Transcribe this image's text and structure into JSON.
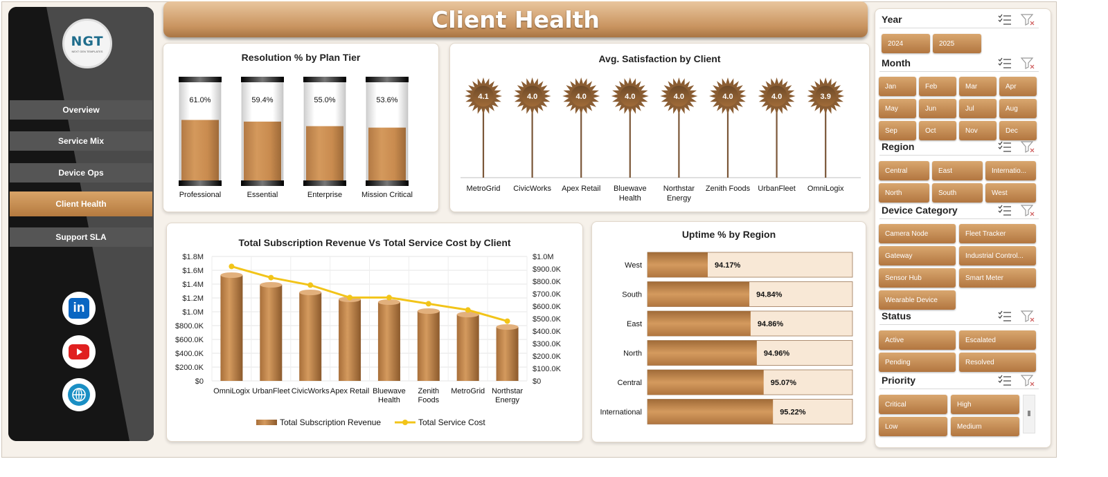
{
  "title": "Client Health",
  "logo": {
    "text": "NGT",
    "subtext": "NEXT GEN TEMPLATES"
  },
  "nav": [
    {
      "label": "Overview",
      "active": false
    },
    {
      "label": "Service Mix",
      "active": false
    },
    {
      "label": "Device Ops",
      "active": false
    },
    {
      "label": "Client Health",
      "active": true
    },
    {
      "label": "Support SLA",
      "active": false
    }
  ],
  "social": [
    {
      "icon": "linkedin-icon",
      "text": "in"
    },
    {
      "icon": "youtube-icon"
    },
    {
      "icon": "globe-icon"
    }
  ],
  "colors": {
    "accent": "#c68a4d",
    "accent_dark": "#a06b38",
    "line": "#f2c419",
    "track": "#f8e8d6"
  },
  "slicers": {
    "year": {
      "label": "Year",
      "options": [
        "2024",
        "2025"
      ]
    },
    "month": {
      "label": "Month",
      "options": [
        "Jan",
        "Feb",
        "Mar",
        "Apr",
        "May",
        "Jun",
        "Jul",
        "Aug",
        "Sep",
        "Oct",
        "Nov",
        "Dec"
      ]
    },
    "region": {
      "label": "Region",
      "options": [
        "Central",
        "East",
        "Internatio...",
        "North",
        "South",
        "West"
      ]
    },
    "device_category": {
      "label": "Device Category",
      "options": [
        "Camera Node",
        "Fleet Tracker",
        "Gateway",
        "Industrial Control...",
        "Sensor Hub",
        "Smart Meter",
        "Wearable Device"
      ]
    },
    "status": {
      "label": "Status",
      "options": [
        "Active",
        "Escalated",
        "Pending",
        "Resolved"
      ]
    },
    "priority": {
      "label": "Priority",
      "options": [
        "Critical",
        "High",
        "Low",
        "Medium"
      ]
    }
  },
  "chart_data": [
    {
      "type": "bar",
      "title": "Resolution % by Plan Tier",
      "categories": [
        "Professional",
        "Essential",
        "Enterprise",
        "Mission Critical"
      ],
      "values": [
        61.0,
        59.4,
        55.0,
        53.6
      ],
      "labels": [
        "61.0%",
        "59.4%",
        "55.0%",
        "53.6%"
      ],
      "ylim": [
        0,
        100
      ]
    },
    {
      "type": "scatter",
      "title": "Avg. Satisfaction by Client",
      "categories": [
        "MetroGrid",
        "CivicWorks",
        "Apex Retail",
        "Bluewave Health",
        "Northstar Energy",
        "Zenith Foods",
        "UrbanFleet",
        "OmniLogix"
      ],
      "values": [
        4.1,
        4.0,
        4.0,
        4.0,
        4.0,
        4.0,
        4.0,
        3.9
      ],
      "labels": [
        "4.1",
        "4.0",
        "4.0",
        "4.0",
        "4.0",
        "4.0",
        "4.0",
        "3.9"
      ]
    },
    {
      "type": "bar",
      "title": "Total Subscription Revenue  Vs Total Service Cost by Client",
      "categories": [
        "OmniLogix",
        "UrbanFleet",
        "CivicWorks",
        "Apex Retail",
        "Bluewave Health",
        "Zenith Foods",
        "MetroGrid",
        "Northstar Energy"
      ],
      "series": [
        {
          "name": "Total Subscription Revenue",
          "type": "bar",
          "axis": "left",
          "values": [
            1530000,
            1390000,
            1280000,
            1180000,
            1140000,
            1010000,
            960000,
            780000
          ]
        },
        {
          "name": "Total Service Cost",
          "type": "line",
          "axis": "right",
          "values": [
            920000,
            830000,
            770000,
            670000,
            670000,
            620000,
            570000,
            480000
          ]
        }
      ],
      "y_left": {
        "ylim": [
          0,
          1800000
        ],
        "ticks": [
          "$0",
          "$200.0K",
          "$400.0K",
          "$600.0K",
          "$800.0K",
          "$1.0M",
          "$1.2M",
          "$1.4M",
          "$1.6M",
          "$1.8M"
        ]
      },
      "y_right": {
        "ylim": [
          0,
          1000000
        ],
        "ticks": [
          "$0",
          "$100.0K",
          "$200.0K",
          "$300.0K",
          "$400.0K",
          "$500.0K",
          "$600.0K",
          "$700.0K",
          "$800.0K",
          "$900.0K",
          "$1.0M"
        ]
      },
      "grid": true,
      "legend": "bottom"
    },
    {
      "type": "bar",
      "title": "Uptime % by Region",
      "orientation": "horizontal",
      "categories": [
        "West",
        "South",
        "East",
        "North",
        "Central",
        "International"
      ],
      "values": [
        94.17,
        94.84,
        94.86,
        94.96,
        95.07,
        95.22
      ],
      "labels": [
        "94.17%",
        "94.84%",
        "94.86%",
        "94.96%",
        "95.07%",
        "95.22%"
      ]
    }
  ]
}
